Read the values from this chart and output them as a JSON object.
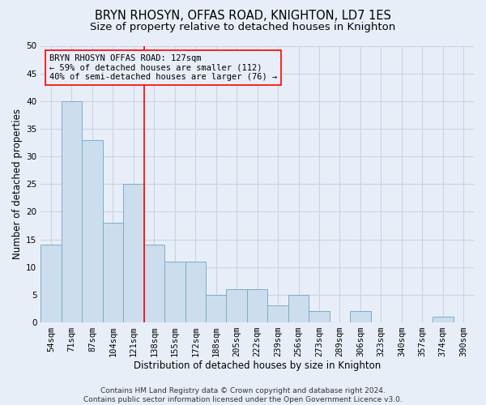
{
  "title1": "BRYN RHOSYN, OFFAS ROAD, KNIGHTON, LD7 1ES",
  "title2": "Size of property relative to detached houses in Knighton",
  "xlabel": "Distribution of detached houses by size in Knighton",
  "ylabel": "Number of detached properties",
  "categories": [
    "54sqm",
    "71sqm",
    "87sqm",
    "104sqm",
    "121sqm",
    "138sqm",
    "155sqm",
    "172sqm",
    "188sqm",
    "205sqm",
    "222sqm",
    "239sqm",
    "256sqm",
    "273sqm",
    "289sqm",
    "306sqm",
    "323sqm",
    "340sqm",
    "357sqm",
    "374sqm",
    "390sqm"
  ],
  "values": [
    14,
    40,
    33,
    18,
    25,
    14,
    11,
    11,
    5,
    6,
    6,
    3,
    5,
    2,
    0,
    2,
    0,
    0,
    0,
    1,
    0
  ],
  "bar_color": "#ccdded",
  "bar_edge_color": "#7aaec8",
  "grid_color": "#c8d4e4",
  "background_color": "#e8eef8",
  "red_line_x": 4.5,
  "annotation_text": "BRYN RHOSYN OFFAS ROAD: 127sqm\n← 59% of detached houses are smaller (112)\n40% of semi-detached houses are larger (76) →",
  "footer": "Contains HM Land Registry data © Crown copyright and database right 2024.\nContains public sector information licensed under the Open Government Licence v3.0.",
  "ylim": [
    0,
    50
  ],
  "yticks": [
    0,
    5,
    10,
    15,
    20,
    25,
    30,
    35,
    40,
    45,
    50
  ],
  "title1_fontsize": 10.5,
  "title2_fontsize": 9.5,
  "xlabel_fontsize": 8.5,
  "ylabel_fontsize": 8.5,
  "tick_fontsize": 7.5,
  "annotation_fontsize": 7.5,
  "footer_fontsize": 6.5
}
